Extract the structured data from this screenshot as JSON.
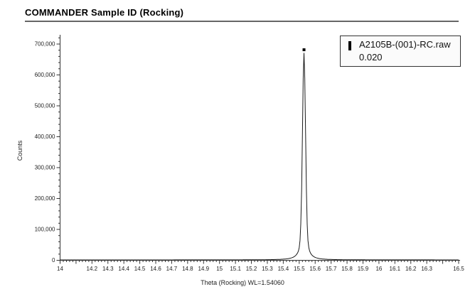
{
  "window": {
    "title": "COMMANDER Sample ID (Rocking)"
  },
  "chart_data": {
    "type": "line",
    "title": "COMMANDER Sample ID (Rocking)",
    "xlabel": "Theta (Rocking) WL=1.54060",
    "ylabel": "Counts",
    "xlim": [
      14,
      16.5
    ],
    "ylim": [
      0,
      700000
    ],
    "grid": false,
    "legend_position": "top-right",
    "x_major_tick_step": 0.1,
    "x_minor_tick_step": 0.02,
    "y_major_tick_step": 100000,
    "y_minor_tick_step": 20000,
    "x_major_ticks": [
      {
        "value": 14.0,
        "label": "14"
      },
      {
        "value": 14.1,
        "label": ""
      },
      {
        "value": 14.2,
        "label": "14.2"
      },
      {
        "value": 14.3,
        "label": "14.3"
      },
      {
        "value": 14.4,
        "label": "14.4"
      },
      {
        "value": 14.5,
        "label": "14.5"
      },
      {
        "value": 14.6,
        "label": "14.6"
      },
      {
        "value": 14.7,
        "label": "14.7"
      },
      {
        "value": 14.8,
        "label": "14.8"
      },
      {
        "value": 14.9,
        "label": "14.9"
      },
      {
        "value": 15.0,
        "label": "15"
      },
      {
        "value": 15.1,
        "label": "15.1"
      },
      {
        "value": 15.2,
        "label": "15.2"
      },
      {
        "value": 15.3,
        "label": "15.3"
      },
      {
        "value": 15.4,
        "label": "15.4"
      },
      {
        "value": 15.5,
        "label": "15.5"
      },
      {
        "value": 15.6,
        "label": "15.6"
      },
      {
        "value": 15.7,
        "label": "15.7"
      },
      {
        "value": 15.8,
        "label": "15.8"
      },
      {
        "value": 15.9,
        "label": "15.9"
      },
      {
        "value": 16.0,
        "label": "16"
      },
      {
        "value": 16.1,
        "label": "16.1"
      },
      {
        "value": 16.2,
        "label": "16.2"
      },
      {
        "value": 16.3,
        "label": "16.3"
      },
      {
        "value": 16.4,
        "label": ""
      },
      {
        "value": 16.5,
        "label": "16.5"
      }
    ],
    "y_major_ticks": [
      {
        "value": 0,
        "label": "0"
      },
      {
        "value": 100000,
        "label": "100,000"
      },
      {
        "value": 200000,
        "label": "200,000"
      },
      {
        "value": 300000,
        "label": "300,000"
      },
      {
        "value": 400000,
        "label": "400,000"
      },
      {
        "value": 500000,
        "label": "500,000"
      },
      {
        "value": 600000,
        "label": "600,000"
      },
      {
        "value": 700000,
        "label": "700,000"
      }
    ],
    "series": [
      {
        "name": "A2105B-(001)-RC.raw",
        "color": "#1a1a1a",
        "baseline_counts": 1200,
        "peak": {
          "center": 15.53,
          "height_counts": 670000,
          "fwhm": 0.02,
          "profile": "pseudo-voigt",
          "gauss_width": 0.022,
          "lorentz_width": 0.032,
          "lorentz_fraction": 0.25
        }
      }
    ],
    "peak_marker": {
      "x": 15.53,
      "y": 670000,
      "shape": "square",
      "color": "#000000"
    },
    "legend": {
      "entries": [
        {
          "marker": "vertical-bar",
          "label": "A2105B-(001)-RC.raw",
          "value": "0.020"
        }
      ]
    }
  },
  "colors": {
    "curve": "#1a1a1a",
    "axis": "#333333",
    "tick_label": "#222222",
    "title_rule": "#666666",
    "legend_border": "#333333",
    "legend_bg": "#fbfbfb"
  }
}
